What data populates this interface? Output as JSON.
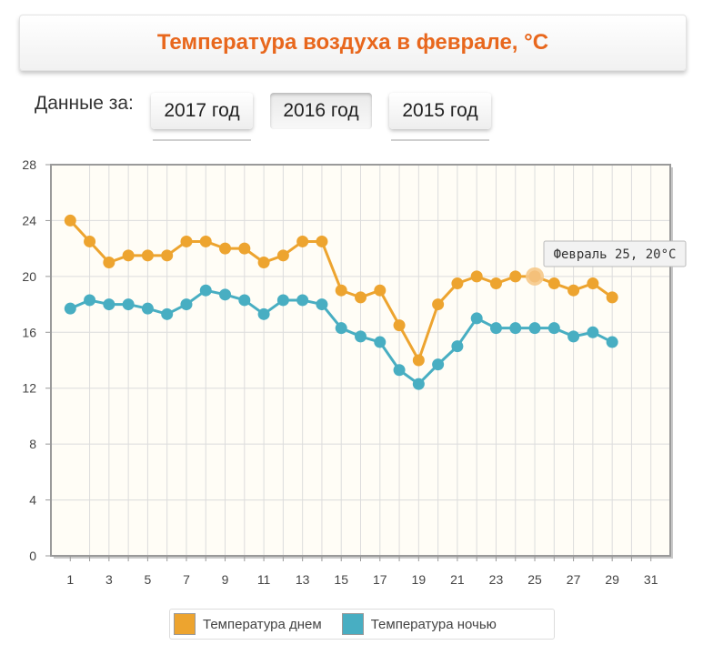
{
  "header": {
    "title": "Температура воздуха в феврале, °C"
  },
  "year_selector": {
    "label": "Данные за:",
    "buttons": [
      {
        "label": "2017 год",
        "active": false
      },
      {
        "label": "2016 год",
        "active": true
      },
      {
        "label": "2015 год",
        "active": false
      }
    ]
  },
  "tooltip": {
    "text": "Февраль 25, 20°C"
  },
  "colors": {
    "day": "#eda42f",
    "night": "#48aec2",
    "plot_bg": "#fffdf6",
    "title": "#e8671d"
  },
  "chart_data": {
    "type": "line",
    "title": "Температура воздуха в феврале, °C",
    "x_ticks": [
      1,
      3,
      5,
      7,
      9,
      11,
      13,
      15,
      17,
      19,
      21,
      23,
      25,
      27,
      29,
      31
    ],
    "xlim": [
      0,
      32
    ],
    "ylim": [
      0,
      28
    ],
    "y_ticks": [
      0,
      4,
      8,
      12,
      16,
      20,
      24,
      28
    ],
    "grid": true,
    "legend_position": "bottom-center",
    "x": [
      1,
      2,
      3,
      4,
      5,
      6,
      7,
      8,
      9,
      10,
      11,
      12,
      13,
      14,
      15,
      16,
      17,
      18,
      19,
      20,
      21,
      22,
      23,
      24,
      25,
      26,
      27,
      28,
      29
    ],
    "series": [
      {
        "name": "Температура днем",
        "color": "#eda42f",
        "values": [
          24,
          22.5,
          21,
          21.5,
          21.5,
          21.5,
          22.5,
          22.5,
          22,
          22,
          21,
          21.5,
          22.5,
          22.5,
          19,
          18.5,
          19,
          16.5,
          14,
          18,
          19.5,
          20,
          19.5,
          20,
          20,
          19.5,
          19,
          19.5,
          18.5
        ]
      },
      {
        "name": "Температура ночью",
        "color": "#48aec2",
        "values": [
          17.7,
          18.3,
          18,
          18,
          17.7,
          17.3,
          18,
          19,
          18.7,
          18.3,
          17.3,
          18.3,
          18.3,
          18,
          16.3,
          15.7,
          15.3,
          13.3,
          12.3,
          13.7,
          15,
          17,
          16.3,
          16.3,
          16.3,
          16.3,
          15.7,
          16,
          15.3
        ]
      }
    ],
    "highlight": {
      "series": 0,
      "x": 25,
      "y": 20
    }
  },
  "legend": [
    {
      "label": "Температура днем",
      "color": "#eda42f"
    },
    {
      "label": "Температура ночью",
      "color": "#48aec2"
    }
  ]
}
